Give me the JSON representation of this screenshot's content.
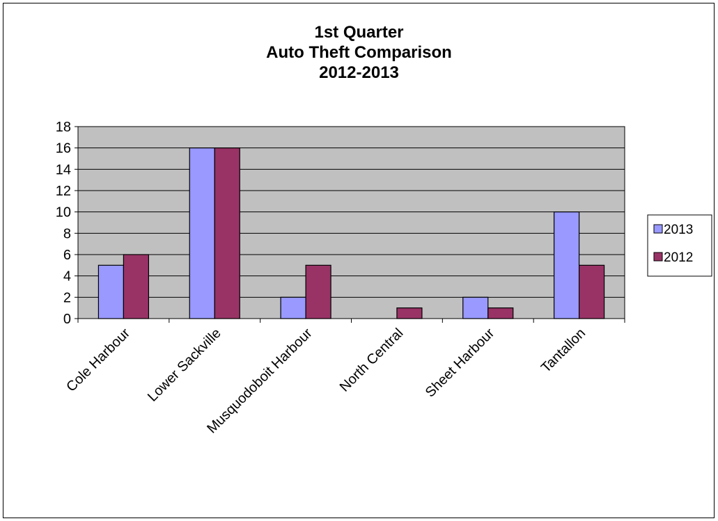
{
  "chart_data": {
    "type": "bar",
    "title": [
      "1st Quarter",
      "Auto Theft Comparison",
      "2012-2013"
    ],
    "categories": [
      "Cole Harbour",
      "Lower Sackville",
      "Musquodoboit Harbour",
      "North Central",
      "Sheet Harbour",
      "Tantallon"
    ],
    "series": [
      {
        "name": "2013",
        "values": [
          5,
          16,
          2,
          0,
          2,
          10
        ],
        "color": "#9999ff"
      },
      {
        "name": "2012",
        "values": [
          6,
          16,
          5,
          1,
          1,
          5
        ],
        "color": "#993366"
      }
    ],
    "ylim": [
      0,
      18
    ],
    "yticks": [
      0,
      2,
      4,
      6,
      8,
      10,
      12,
      14,
      16,
      18
    ],
    "grid": true,
    "plot_background": "#c0c0c0",
    "legend_position": "right",
    "xlabel": "",
    "ylabel": ""
  }
}
